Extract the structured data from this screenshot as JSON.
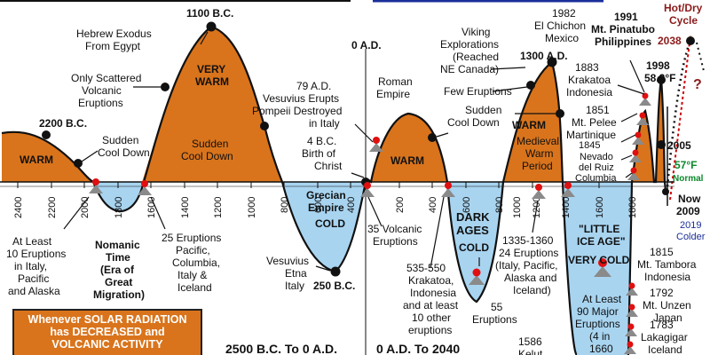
{
  "colors": {
    "warm": "#d9741c",
    "cold": "#a8d4f0",
    "line": "#111111",
    "redtext": "#8b1a1a",
    "green": "#0a8a2a",
    "blue": "#1a2f9a"
  },
  "axis_ticks_bc": [
    "2400",
    "2200",
    "2000",
    "1800",
    "1600",
    "1400",
    "1200",
    "1000",
    "800",
    "600",
    "400",
    "200"
  ],
  "axis_ticks_ad": [
    "200",
    "400",
    "600",
    "800",
    "1000",
    "1200",
    "1400",
    "1600",
    "1800"
  ],
  "labels": {
    "bc_2200": "2200 B.C.",
    "warm_left": "WARM",
    "sudden_cool_left_1": "Sudden",
    "sudden_cool_left_2": "Cool Down",
    "scattered_1": "Only Scattered",
    "scattered_2": "Volcanic",
    "scattered_3": "Eruptions",
    "exodus_1": "Hebrew Exodus",
    "exodus_2": "From Egypt",
    "bc_1100": "1100 B.C.",
    "very_warm_1": "VERY",
    "very_warm_2": "WARM",
    "sudden_cool_mid_1": "Sudden",
    "sudden_cool_mid_2": "Cool Down",
    "at_least_1": "At Least",
    "at_least_2": "10 Eruptions",
    "at_least_3": "in Italy,",
    "at_least_4": "Pacific",
    "at_least_5": "and Alaska",
    "nomanic_1": "Nomanic",
    "nomanic_2": "Time",
    "nomanic_3": "(Era of",
    "nomanic_4": "Great",
    "nomanic_5": "Migration)",
    "eruptions25_1": "25 Eruptions",
    "eruptions25_2": "Pacific,",
    "eruptions25_3": "Columbia,",
    "eruptions25_4": "Italy &",
    "eruptions25_5": "Iceland",
    "ad0": "0 A.D.",
    "vesuvius_1": "79 A.D.",
    "vesuvius_2": "Vesuvius Erupts",
    "vesuvius_3": "Pompeii Destroyed",
    "vesuvius_4": "in Italy",
    "christ_1": "4 B.C.",
    "christ_2": "Birth of",
    "christ_3": "Christ",
    "grecian_1": "Grecian",
    "grecian_2": "Empire",
    "cold_grecian": "COLD",
    "vesuvius_etna_1": "Vesuvius",
    "vesuvius_etna_2": "Etna",
    "vesuvius_etna_3": "Italy",
    "bc_250": "250 B.C.",
    "volcanic35_1": "35 Volcanic",
    "volcanic35_2": "Eruptions",
    "roman_1": "Roman",
    "roman_2": "Empire",
    "warm_roman": "WARM",
    "sudden_cool_right_1": "Sudden",
    "sudden_cool_right_2": "Cool Down",
    "few_eruptions": "Few Eruptions",
    "viking_1": "Viking",
    "viking_2": "Explorations",
    "viking_3": "(Reached",
    "viking_4": "NE Canada)",
    "ad_1300": "1300 A.D.",
    "medieval_1": "Medieval",
    "medieval_2": "Warm",
    "medieval_3": "Period",
    "warm_medieval": "WARM",
    "dark_1": "DARK",
    "dark_2": "AGES",
    "cold_dark": "COLD",
    "krakatoa535_1": "535-550",
    "krakatoa535_2": "Krakatoa,",
    "krakatoa535_3": "Indonesia",
    "krakatoa535_4": "and at least",
    "krakatoa535_5": "10 other",
    "krakatoa535_6": "eruptions",
    "eruptions55_1": "55",
    "eruptions55_2": "Eruptions",
    "e1335_1": "1335-1360",
    "e1335_2": "24 Eruptions",
    "e1335_3": "(Italy, Pacific,",
    "e1335_4": "Alaska and",
    "e1335_5": "Iceland)",
    "little_1": "\"LITTLE",
    "little_2": "ICE AGE\"",
    "very_cold": "VERY COLD",
    "at_least90_1": "At Least",
    "at_least90_2": "90 Major",
    "at_least90_3": "Eruptions",
    "at_least90_4": "(4 in",
    "at_least90_5": "1660",
    "kelut_1": "1586",
    "kelut_2": "Kelut",
    "chichon_1": "1982",
    "chichon_2": "El Chichon",
    "chichon_3": "Mexico",
    "pinatubo_1": "1991",
    "pinatubo_2": "Mt. Pinatubo",
    "pinatubo_3": "Philippines",
    "krakatoa1883_1": "1883",
    "krakatoa1883_2": "Krakatoa",
    "krakatoa1883_3": "Indonesia",
    "pelee_1": "1851",
    "pelee_2": "Mt. Pelee",
    "pelee_3": "Martinique",
    "ruiz_1": "1845",
    "ruiz_2": "Nevado",
    "ruiz_3": "del Ruiz",
    "ruiz_4": "Columbia",
    "y1998_1": "1998",
    "y1998_2": "58.3°F",
    "y2005": "2005",
    "normal_1": "57°F",
    "normal_2": "Normal",
    "now_1": "Now",
    "now_2": "2009",
    "colder_1": "2019",
    "colder_2": "Colder",
    "hotdry_1": "Hot/Dry",
    "hotdry_2": "Cycle",
    "y2038": "2038",
    "question": "?",
    "tambora_1": "1815",
    "tambora_2": "Mt. Tambora",
    "tambora_3": "Indonesia",
    "unzen_1": "1792",
    "unzen_2": "Mt. Unzen",
    "unzen_3": "Japan",
    "laki_1": "1783",
    "laki_2": "Lakagigar",
    "laki_3": "Iceland",
    "bc_range": "2500 B.C. To 0 A.D.",
    "ad_range": "0 A.D. To 2040"
  },
  "note_box": {
    "line1": "Whenever SOLAR RADIATION",
    "line2": "has DECREASED and",
    "line3": "VOLCANIC ACTIVITY"
  }
}
